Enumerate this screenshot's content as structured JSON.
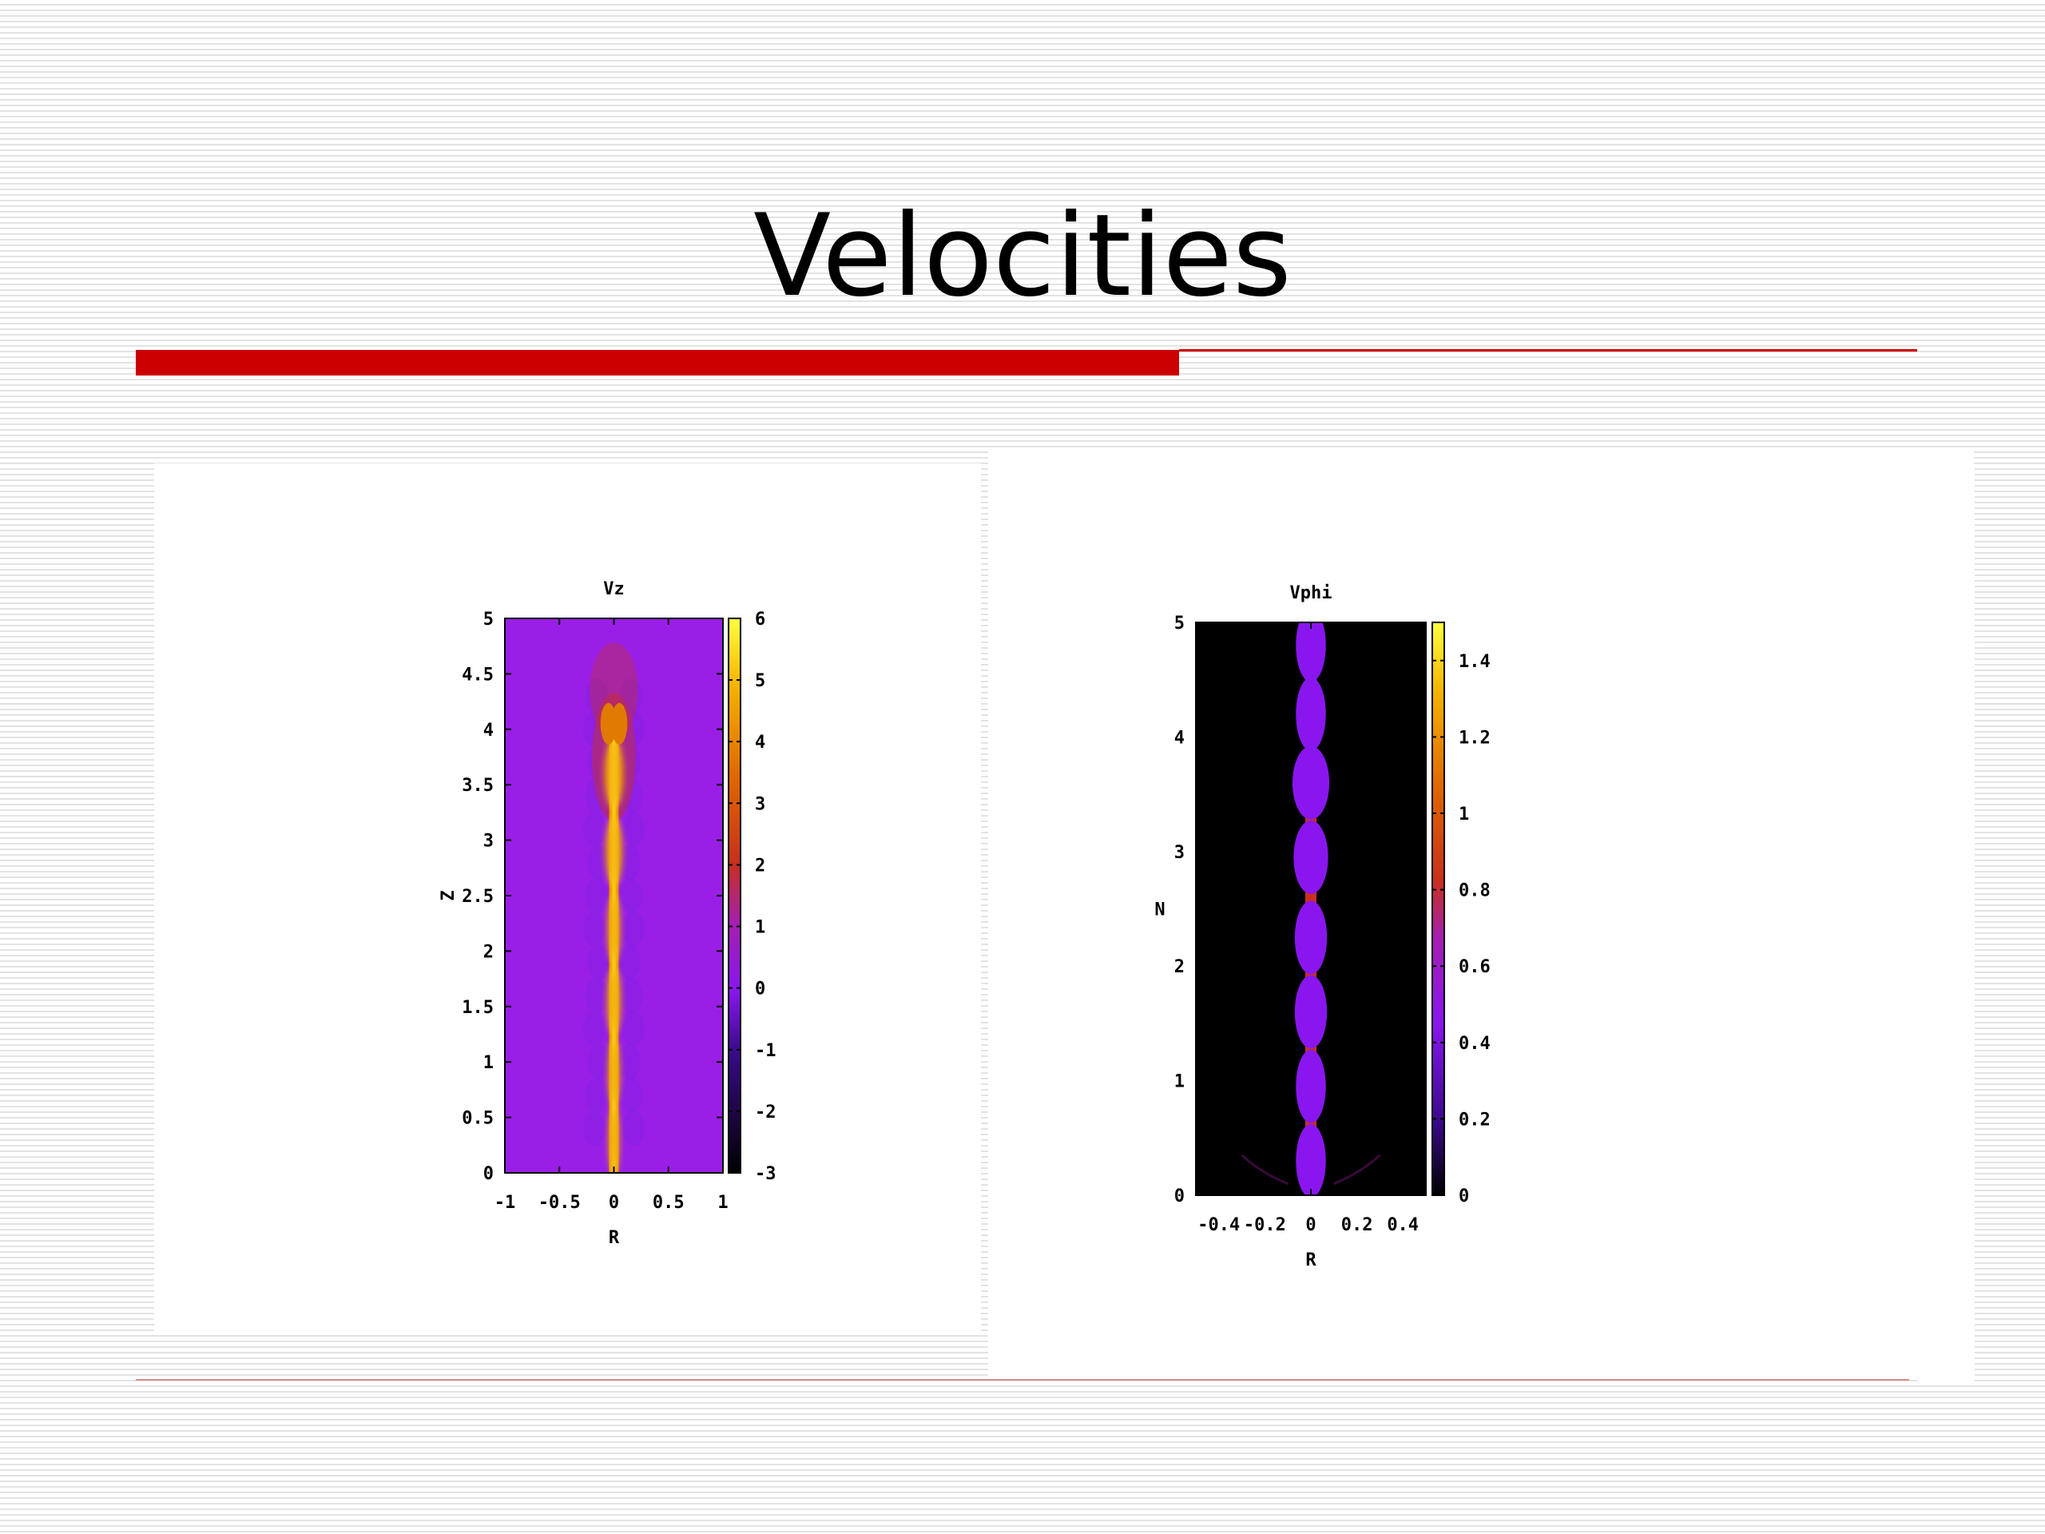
{
  "slide": {
    "title": "Velocities",
    "accent_color": "#cc0000"
  },
  "chart_data": [
    {
      "type": "heatmap",
      "title": "Vz",
      "xlabel": "R",
      "ylabel": "Z",
      "xlim": [
        -1,
        1
      ],
      "ylim": [
        0,
        5
      ],
      "x_ticks": [
        "-1",
        "-0.5",
        "0",
        "0.5",
        "1"
      ],
      "x_tick_values": [
        -1,
        -0.5,
        0,
        0.5,
        1
      ],
      "y_ticks": [
        "0",
        "0.5",
        "1",
        "1.5",
        "2",
        "2.5",
        "3",
        "3.5",
        "4",
        "4.5",
        "5"
      ],
      "y_tick_values": [
        0,
        0.5,
        1,
        1.5,
        2,
        2.5,
        3,
        3.5,
        4,
        4.5,
        5
      ],
      "colorbar": {
        "range": [
          -3,
          6
        ],
        "ticks": [
          "-3",
          "-2",
          "-1",
          "0",
          "1",
          "2",
          "3",
          "4",
          "5",
          "6"
        ],
        "tick_values": [
          -3,
          -2,
          -1,
          0,
          1,
          2,
          3,
          4,
          5,
          6
        ]
      },
      "background_color": "#9a1fe6",
      "jet_color": "#f5b000",
      "jet_extent_z": [
        0,
        4
      ],
      "blobs": [
        {
          "z": 0.3,
          "r": 0.05,
          "v": 5.5
        },
        {
          "z": 0.9,
          "r": 0.055,
          "v": 5.5
        },
        {
          "z": 1.55,
          "r": 0.065,
          "v": 5
        },
        {
          "z": 2.2,
          "r": 0.06,
          "v": 5
        },
        {
          "z": 2.9,
          "r": 0.08,
          "v": 5.5
        },
        {
          "z": 3.6,
          "r": 0.09,
          "v": 4.5
        }
      ]
    },
    {
      "type": "heatmap",
      "title": "Vphi",
      "xlabel": "R",
      "ylabel": "N",
      "xlim": [
        -0.5,
        0.5
      ],
      "ylim": [
        0,
        5
      ],
      "x_ticks": [
        "-0.4",
        "-0.2",
        "0",
        "0.2",
        "0.4"
      ],
      "x_tick_values": [
        -0.4,
        -0.2,
        0,
        0.2,
        0.4
      ],
      "y_ticks": [
        "0",
        "1",
        "2",
        "3",
        "4",
        "5"
      ],
      "y_tick_values": [
        0,
        1,
        2,
        3,
        4,
        5
      ],
      "colorbar": {
        "range": [
          0,
          1.5
        ],
        "ticks": [
          "0",
          "0.2",
          "0.4",
          "0.6",
          "0.8",
          "1",
          "1.2",
          "1.4"
        ],
        "tick_values": [
          0,
          0.2,
          0.4,
          0.6,
          0.8,
          1,
          1.2,
          1.4
        ]
      },
      "background_color": "#000000",
      "blob_color": "#8a16ef",
      "pinch_color": "#c8301c",
      "blobs": [
        {
          "z": 0.3,
          "r": 0.065
        },
        {
          "z": 0.95,
          "r": 0.065
        },
        {
          "z": 1.6,
          "r": 0.07
        },
        {
          "z": 2.25,
          "r": 0.07
        },
        {
          "z": 2.95,
          "r": 0.075
        },
        {
          "z": 3.6,
          "r": 0.08
        },
        {
          "z": 4.2,
          "r": 0.065
        },
        {
          "z": 4.8,
          "r": 0.065
        }
      ]
    }
  ]
}
